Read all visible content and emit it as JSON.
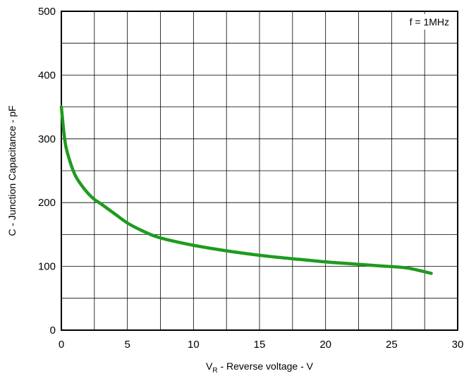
{
  "chart_data": {
    "type": "line",
    "title": "",
    "xlabel_main": "V",
    "xlabel_sub": "R",
    "xlabel_rest": " - Reverse voltage - V",
    "ylabel": "C - Junction Capacitance - pF",
    "annotation": "f = 1MHz",
    "xlim": [
      0,
      30
    ],
    "ylim": [
      0,
      500
    ],
    "x_ticks": [
      0,
      5,
      10,
      15,
      20,
      25,
      30
    ],
    "y_ticks": [
      0,
      100,
      200,
      300,
      400,
      500
    ],
    "x_tick_labels": [
      "0",
      "5",
      "10",
      "15",
      "20",
      "25",
      "30"
    ],
    "y_tick_labels": [
      "0",
      "100",
      "200",
      "300",
      "400",
      "500"
    ],
    "grid": true,
    "line_color": "#1e9b1e",
    "series": [
      {
        "x": [
          0,
          0.25,
          0.5,
          1,
          1.5,
          2,
          2.5,
          3,
          4,
          5,
          6,
          7,
          8,
          10,
          12,
          14,
          16,
          18,
          20,
          22,
          24,
          26,
          27,
          28
        ],
        "y": [
          350,
          300,
          275,
          245,
          228,
          215,
          205,
          198,
          183,
          168,
          157,
          148,
          142,
          133,
          126,
          120,
          115,
          111,
          107,
          104,
          101,
          98,
          94,
          89
        ]
      }
    ]
  }
}
